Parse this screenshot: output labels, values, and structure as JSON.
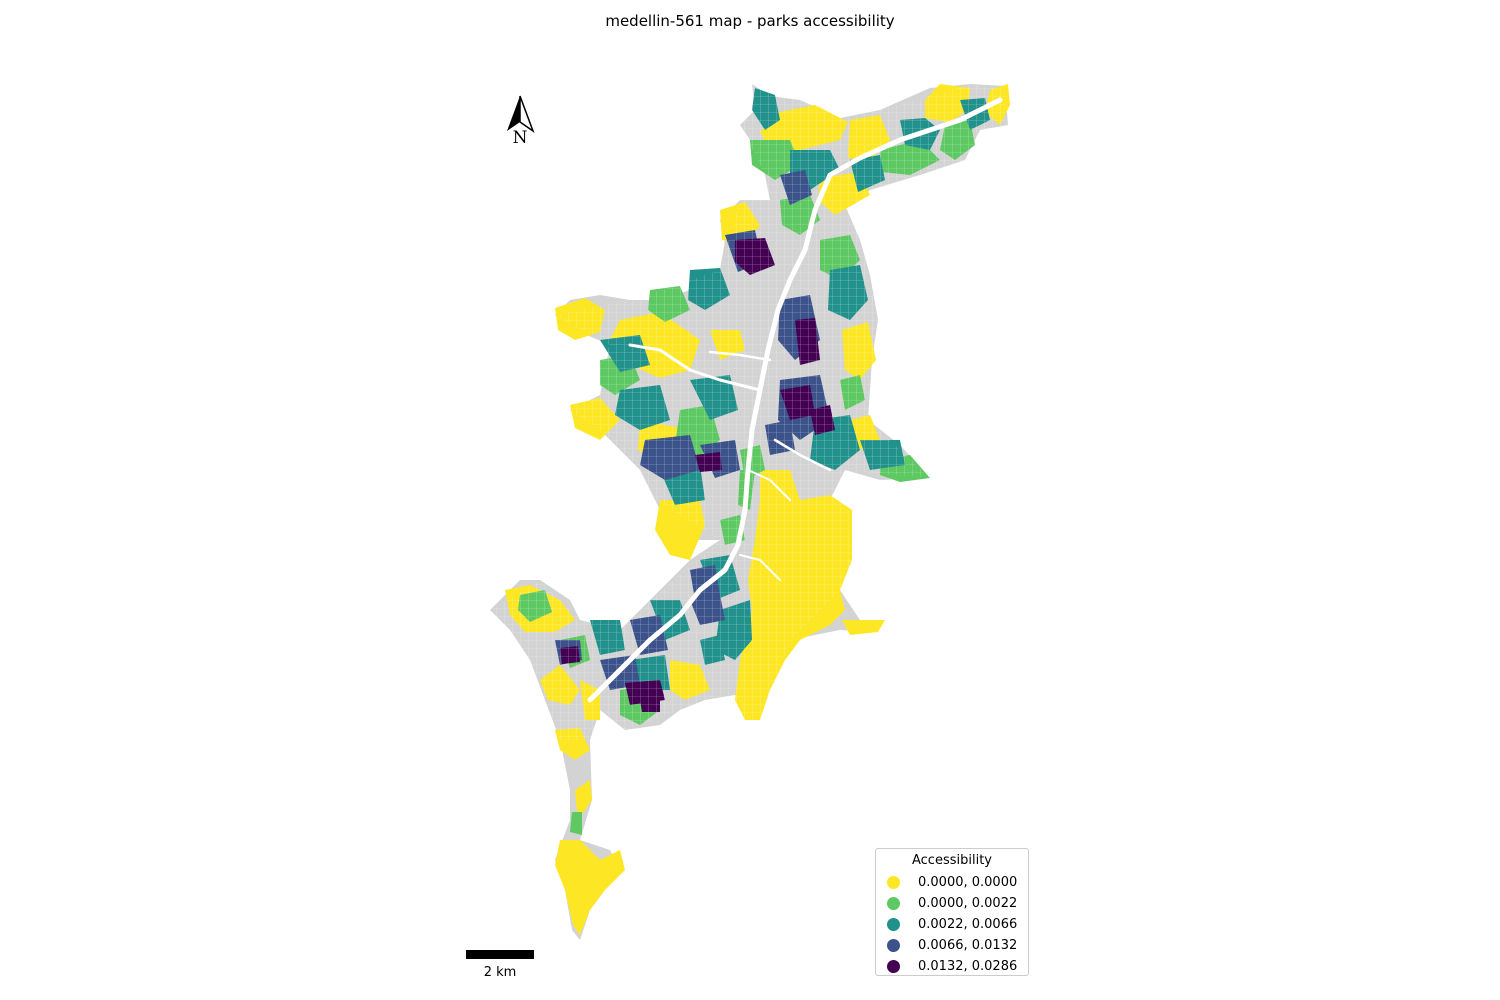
{
  "map": {
    "title": "medellin-561 map - parks accessibility",
    "north_label": "N",
    "scale_label": "2 km",
    "no_data_color": "#d3d3d3",
    "road_color": "#ffffff",
    "legend": {
      "title": "Accessibility",
      "items": [
        {
          "label": "0.0000, 0.0000",
          "color": "#fde725"
        },
        {
          "label": "0.0000, 0.0022",
          "color": "#5ec962"
        },
        {
          "label": "0.0022, 0.0066",
          "color": "#21918c"
        },
        {
          "label": "0.0066, 0.0132",
          "color": "#3b528b"
        },
        {
          "label": "0.0132, 0.0286",
          "color": "#440154"
        }
      ]
    }
  }
}
